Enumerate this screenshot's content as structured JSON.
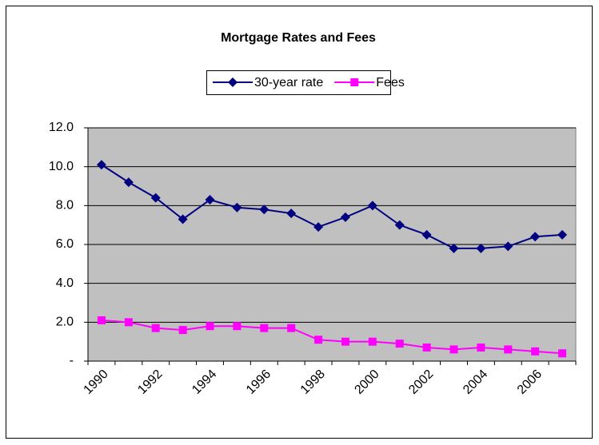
{
  "chart_data": {
    "type": "line",
    "title": "Mortgage Rates and Fees",
    "categories": [
      "1990",
      null,
      "1992",
      null,
      "1994",
      null,
      "1996",
      null,
      "1998",
      null,
      "2000",
      null,
      "2002",
      null,
      "2004",
      null,
      "2006",
      null
    ],
    "series": [
      {
        "name": "30-year rate",
        "color": "#000080",
        "marker": "diamond",
        "values": [
          10.1,
          9.2,
          8.4,
          7.3,
          8.3,
          7.9,
          7.8,
          7.6,
          6.9,
          7.4,
          8.0,
          7.0,
          6.5,
          5.8,
          5.8,
          5.9,
          6.4,
          6.5
        ]
      },
      {
        "name": "Fees",
        "color": "#ff00ff",
        "marker": "square",
        "values": [
          2.1,
          2.0,
          1.7,
          1.6,
          1.8,
          1.8,
          1.7,
          1.7,
          1.1,
          1.0,
          1.0,
          0.9,
          0.7,
          0.6,
          0.7,
          0.6,
          0.5,
          0.4
        ]
      }
    ],
    "ylim": [
      0,
      12
    ],
    "yticks": [
      {
        "value": 0,
        "label": "-"
      },
      {
        "value": 2,
        "label": "2.0"
      },
      {
        "value": 4,
        "label": "4.0"
      },
      {
        "value": 6,
        "label": "6.0"
      },
      {
        "value": 8,
        "label": "8.0"
      },
      {
        "value": 10,
        "label": "10.0"
      },
      {
        "value": 12,
        "label": "12.0"
      }
    ],
    "grid": true,
    "legend": "top"
  }
}
